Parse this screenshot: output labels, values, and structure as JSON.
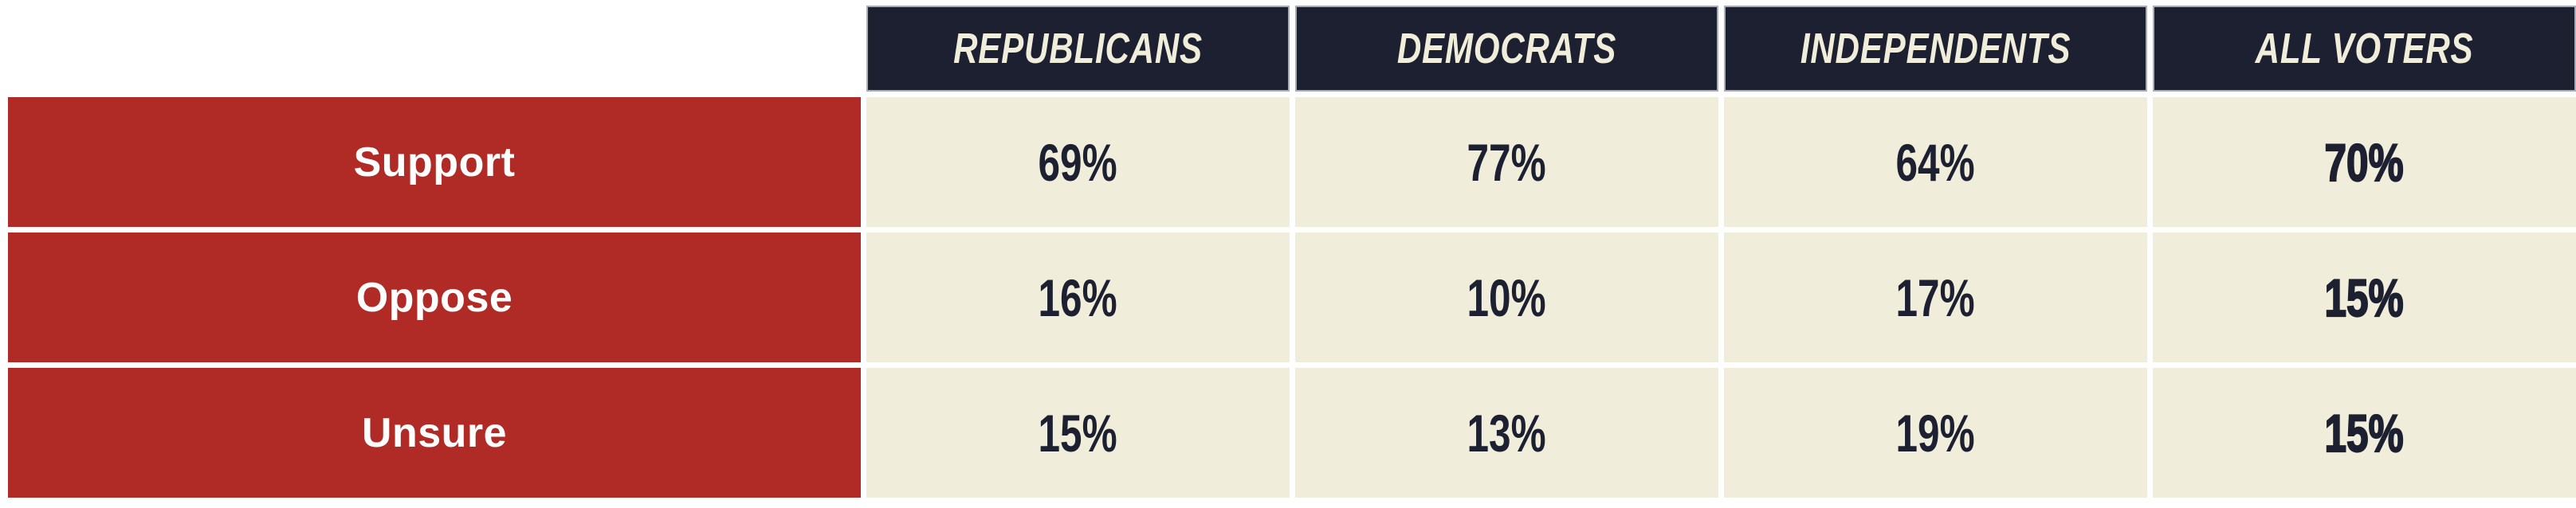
{
  "colors": {
    "header_background": "#1c2031",
    "header_text": "#f0eedb",
    "header_border": "#a8adb8",
    "row_label_background": "#b12b26",
    "row_label_text": "#ffffff",
    "data_cell_background": "#f0eedb",
    "data_cell_text": "#1c2031",
    "page_background": "#ffffff"
  },
  "table": {
    "columns": [
      "REPUBLICANS",
      "DEMOCRATS",
      "INDEPENDENTS",
      "ALL VOTERS"
    ],
    "rows": [
      {
        "label": "Support",
        "values": [
          "69%",
          "77%",
          "64%",
          "70%"
        ]
      },
      {
        "label": "Oppose",
        "values": [
          "16%",
          "10%",
          "17%",
          "15%"
        ]
      },
      {
        "label": "Unsure",
        "values": [
          "15%",
          "13%",
          "19%",
          "15%"
        ]
      }
    ]
  },
  "chart_data": {
    "type": "table",
    "columns": [
      "REPUBLICANS",
      "DEMOCRATS",
      "INDEPENDENTS",
      "ALL VOTERS"
    ],
    "row_labels": [
      "Support",
      "Oppose",
      "Unsure"
    ],
    "values_pct": [
      [
        69,
        77,
        64,
        70
      ],
      [
        16,
        10,
        17,
        15
      ],
      [
        15,
        13,
        19,
        15
      ]
    ],
    "unit": "%",
    "layout_hints": {
      "emphasized_column": "ALL VOTERS",
      "header_style": "dark navy, italic condensed caps",
      "row_label_style": "red background, white bold text",
      "grid": "white gutters between cells, no outer frame"
    }
  }
}
